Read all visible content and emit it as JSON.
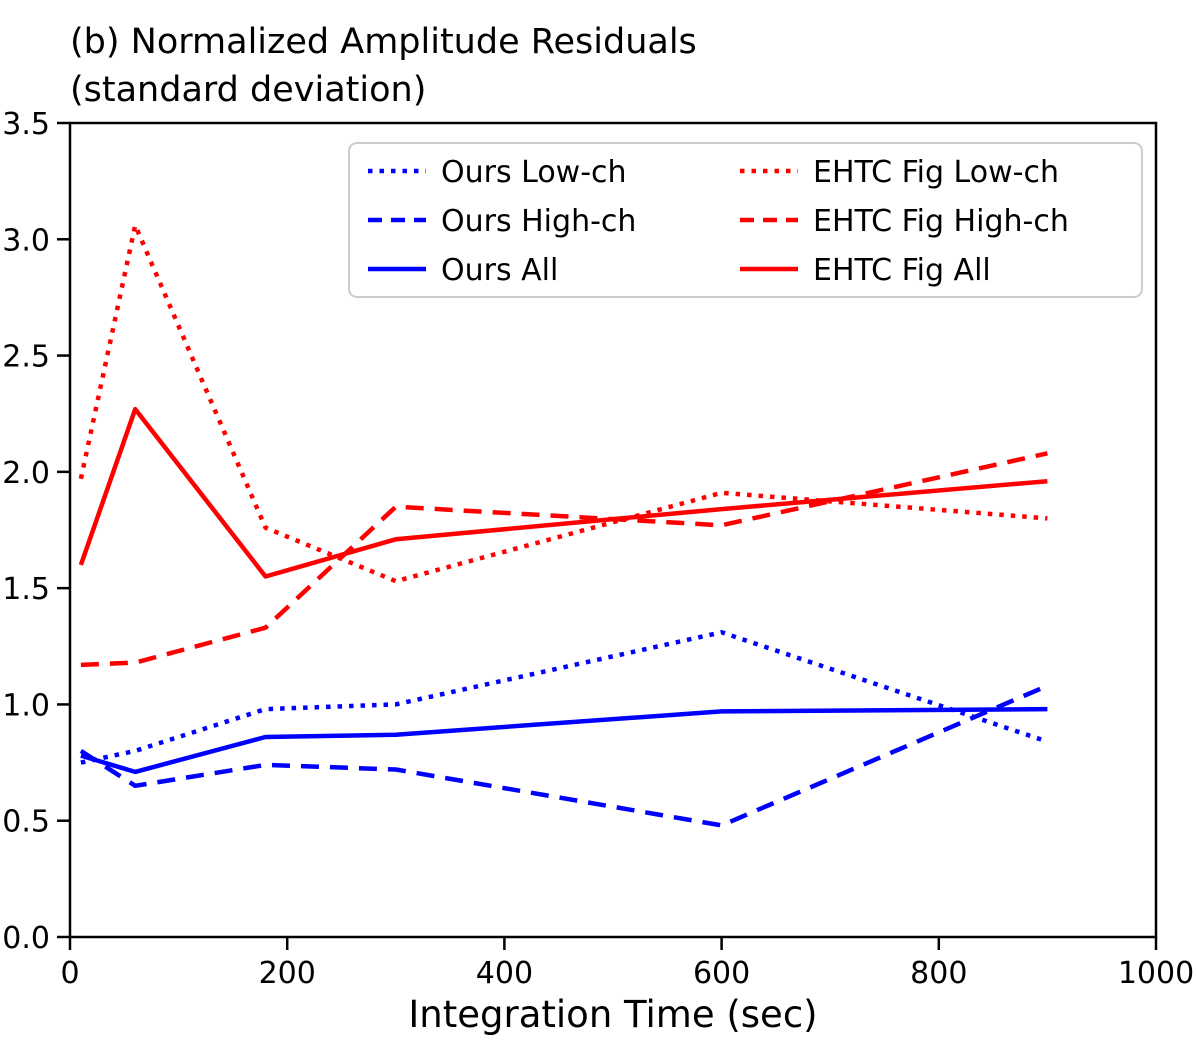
{
  "title": {
    "line1": "(b) Normalized Amplitude Residuals",
    "line2": "(standard deviation)"
  },
  "chart_data": {
    "type": "line",
    "title": "(b) Normalized Amplitude Residuals (standard deviation)",
    "xlabel": "Integration Time (sec)",
    "ylabel": "",
    "xlim": [
      0,
      1000
    ],
    "ylim": [
      0,
      3.5
    ],
    "xticks": [
      "0",
      "200",
      "400",
      "600",
      "800",
      "1000"
    ],
    "yticks": [
      "0.0",
      "0.5",
      "1.0",
      "1.5",
      "2.0",
      "2.5",
      "3.0",
      "3.5"
    ],
    "grid": false,
    "legend_position": "upper center, two columns",
    "x": [
      10,
      60,
      180,
      300,
      600,
      900
    ],
    "series": [
      {
        "name": "Ours Low-ch",
        "color": "#0000ff",
        "style": "dotted",
        "values": [
          0.75,
          0.8,
          0.98,
          1.0,
          1.31,
          0.84
        ]
      },
      {
        "name": "Ours High-ch",
        "color": "#0000ff",
        "style": "dashed",
        "values": [
          0.8,
          0.65,
          0.74,
          0.72,
          0.48,
          1.08
        ]
      },
      {
        "name": "Ours All",
        "color": "#0000ff",
        "style": "solid",
        "values": [
          0.78,
          0.71,
          0.86,
          0.87,
          0.97,
          0.98
        ]
      },
      {
        "name": "EHTC Fig Low-ch",
        "color": "#ff0000",
        "style": "dotted",
        "values": [
          1.97,
          3.06,
          1.76,
          1.53,
          1.91,
          1.8
        ]
      },
      {
        "name": "EHTC Fig High-ch",
        "color": "#ff0000",
        "style": "dashed",
        "values": [
          1.17,
          1.18,
          1.33,
          1.85,
          1.77,
          2.08
        ]
      },
      {
        "name": "EHTC Fig All",
        "color": "#ff0000",
        "style": "solid",
        "values": [
          1.6,
          2.27,
          1.55,
          1.71,
          1.84,
          1.96
        ]
      }
    ],
    "colors": {
      "ours": "#0000ff",
      "ehtc": "#ff0000",
      "axis": "#000000",
      "legend_border": "#cccccc"
    }
  }
}
